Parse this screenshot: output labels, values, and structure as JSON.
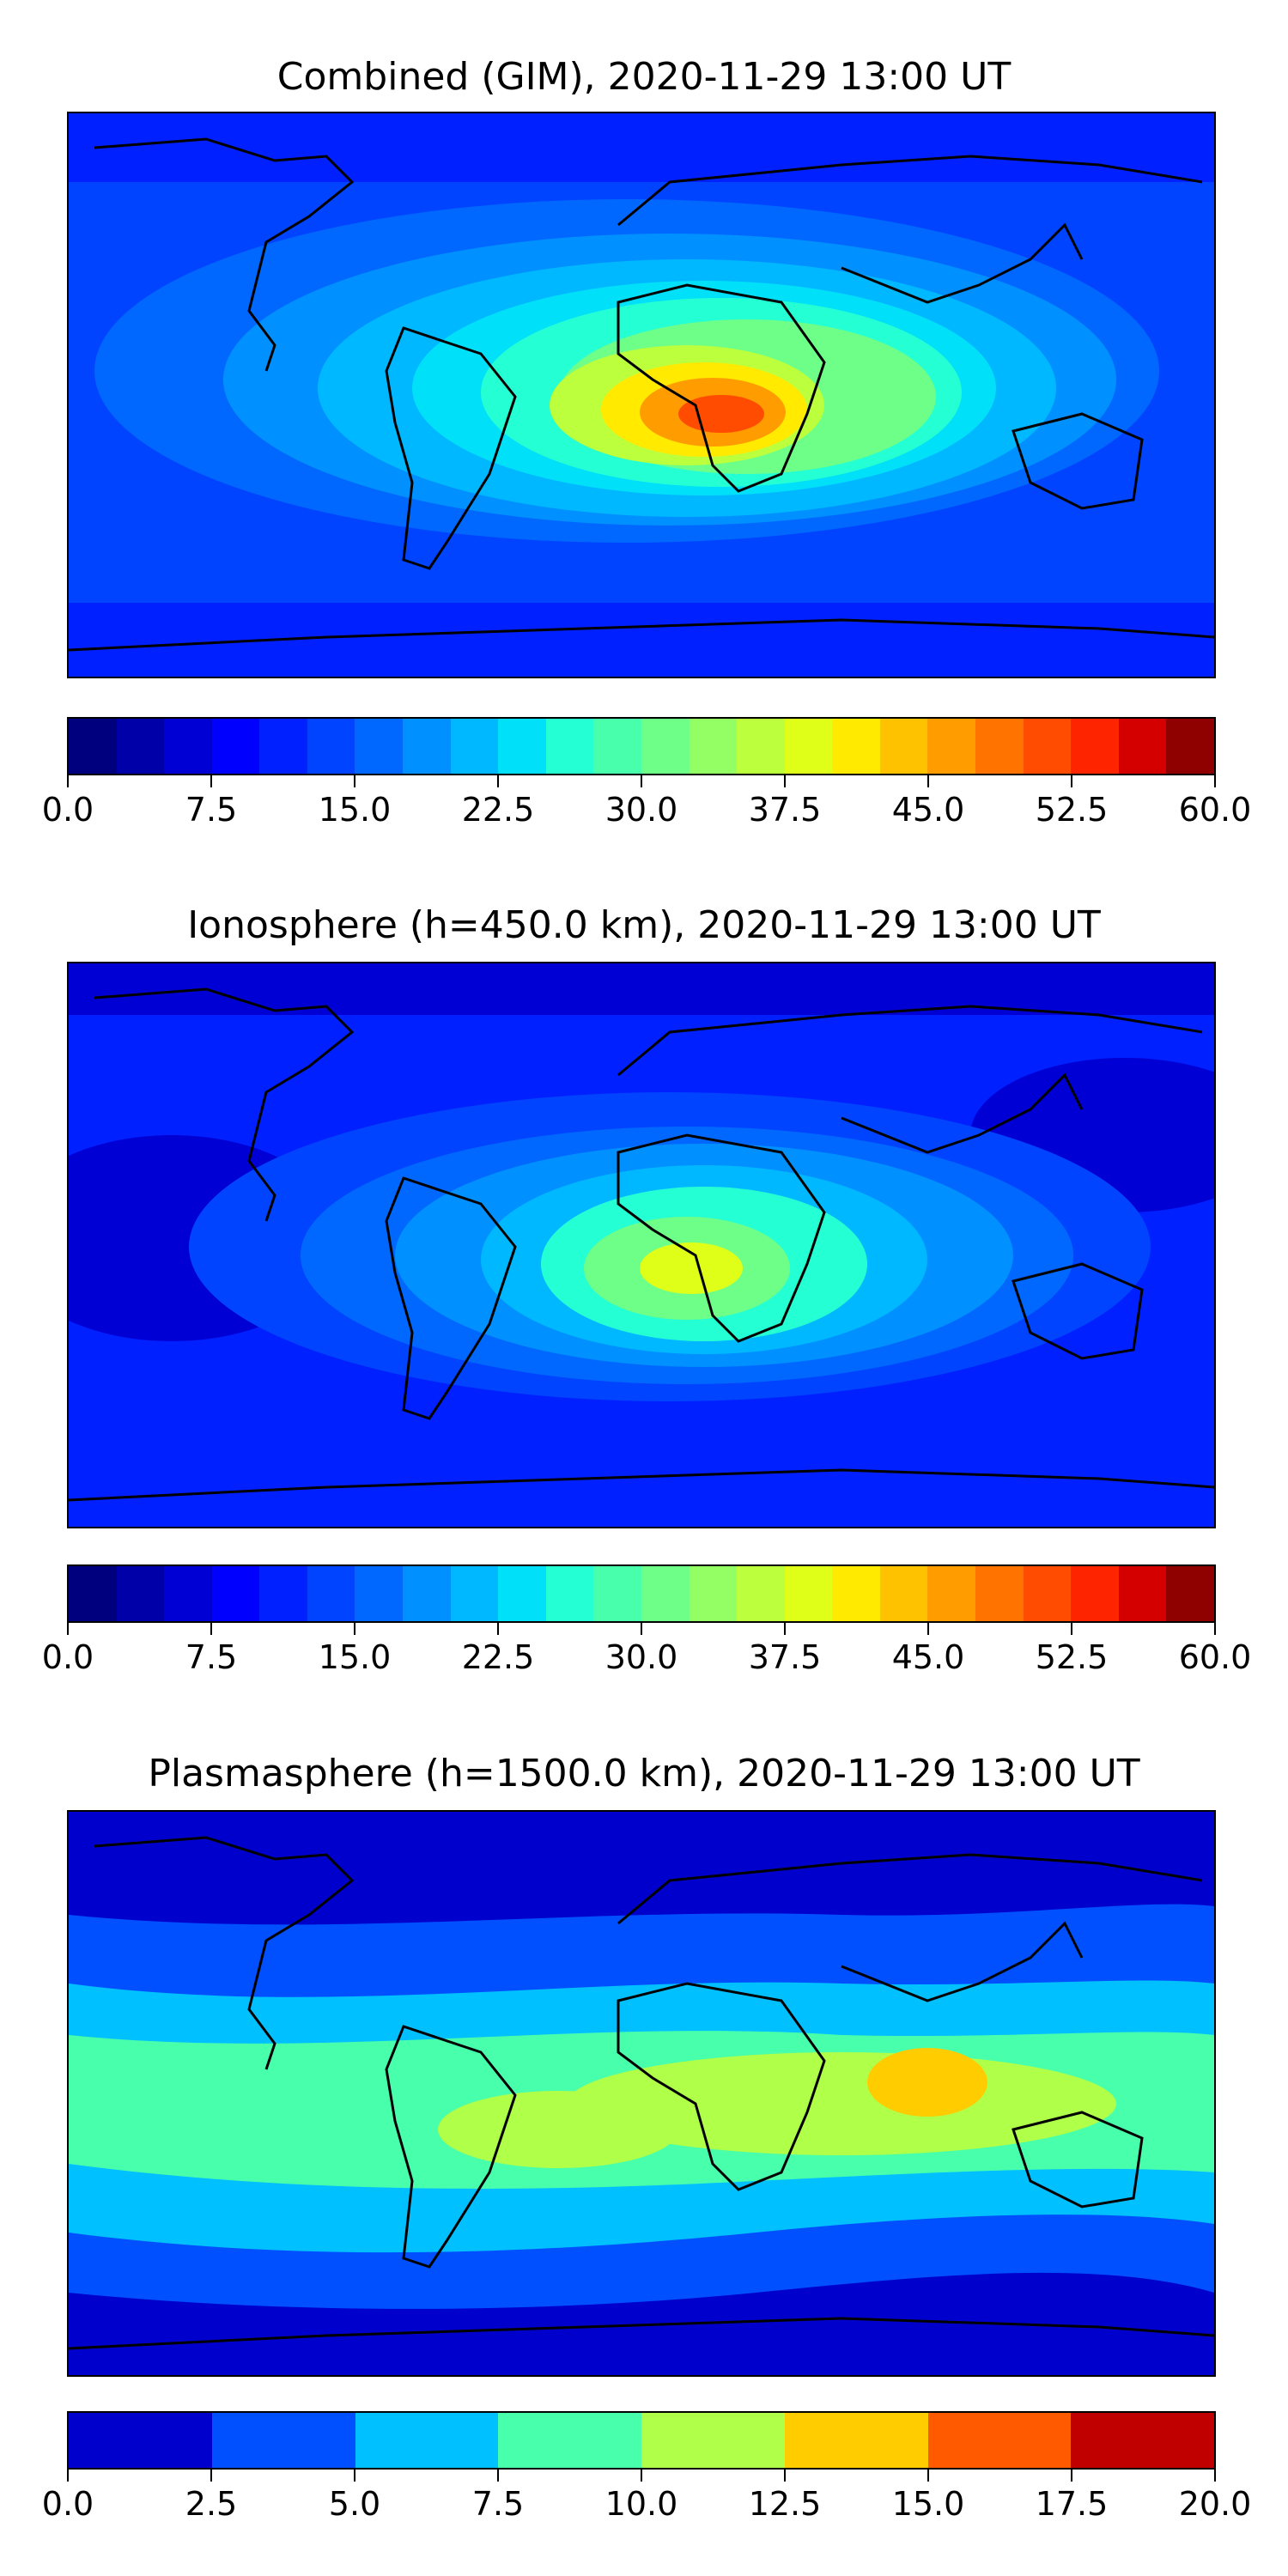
{
  "panels": [
    {
      "title": "Combined (GIM), 2020-11-29 13:00 UT",
      "colorbar": {
        "range": [
          0.0,
          60.0
        ],
        "n_levels": 24,
        "ticks": [
          "0.0",
          "7.5",
          "15.0",
          "22.5",
          "30.0",
          "37.5",
          "45.0",
          "52.5",
          "60.0"
        ],
        "colors": [
          "#00007f",
          "#0000a8",
          "#0000d4",
          "#0000ff",
          "#0020ff",
          "#0044ff",
          "#0068ff",
          "#0090ff",
          "#00b8ff",
          "#00e0f8",
          "#24ffd4",
          "#48ffac",
          "#6eff88",
          "#94ff64",
          "#bcff3c",
          "#e0ff18",
          "#ffea00",
          "#ffc200",
          "#ff9c00",
          "#ff7400",
          "#ff4c00",
          "#ff2400",
          "#d40000",
          "#8f0000"
        ]
      },
      "map_field": {
        "background_color": "#0044ff",
        "max_value_region": "Central Africa",
        "max_level_color": "#ff4c00"
      }
    },
    {
      "title": "Ionosphere  (h=450.0 km), 2020-11-29 13:00 UT",
      "colorbar": {
        "range": [
          0.0,
          60.0
        ],
        "n_levels": 24,
        "ticks": [
          "0.0",
          "7.5",
          "15.0",
          "22.5",
          "30.0",
          "37.5",
          "45.0",
          "52.5",
          "60.0"
        ],
        "colors": [
          "#00007f",
          "#0000a8",
          "#0000d4",
          "#0000ff",
          "#0020ff",
          "#0044ff",
          "#0068ff",
          "#0090ff",
          "#00b8ff",
          "#00e0f8",
          "#24ffd4",
          "#48ffac",
          "#6eff88",
          "#94ff64",
          "#bcff3c",
          "#e0ff18",
          "#ffea00",
          "#ffc200",
          "#ff9c00",
          "#ff7400",
          "#ff4c00",
          "#ff2400",
          "#d40000",
          "#8f0000"
        ]
      },
      "map_field": {
        "background_color": "#0020ff",
        "max_value_region": "Central Africa",
        "max_level_color": "#e0ff18"
      }
    },
    {
      "title": "Plasmasphere (h=1500.0 km), 2020-11-29 13:00 UT",
      "colorbar": {
        "range": [
          0.0,
          20.0
        ],
        "n_levels": 8,
        "ticks": [
          "0.0",
          "2.5",
          "5.0",
          "7.5",
          "10.0",
          "12.5",
          "15.0",
          "17.5",
          "20.0"
        ],
        "colors": [
          "#0000cc",
          "#0050ff",
          "#00c0ff",
          "#48ffac",
          "#b0ff48",
          "#ffcc00",
          "#ff5a00",
          "#c00000"
        ]
      },
      "map_field": {
        "background_color": "#0050ff",
        "max_value_region": "Bay of Bengal / Southeast Asia",
        "max_level_color": "#ffcc00"
      }
    }
  ]
}
